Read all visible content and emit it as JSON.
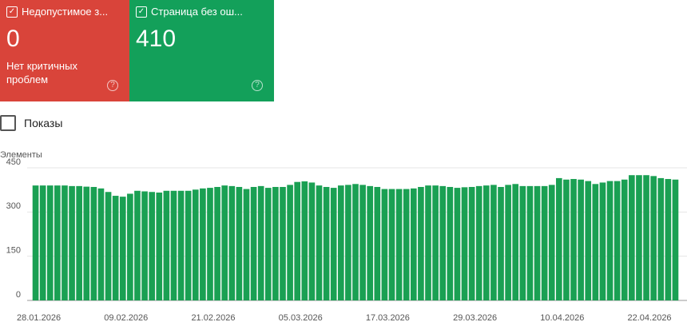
{
  "cards": [
    {
      "title": "Недопустимое з...",
      "value": 0,
      "description": "Нет критичных проблем",
      "color": "#d9443a"
    },
    {
      "title": "Страница без ош...",
      "value": 410,
      "color": "#13a05a"
    }
  ],
  "metric_toggle": "Показы",
  "chart_data": {
    "type": "bar",
    "y_label": "Элементы",
    "color": "#1aa053",
    "categories": [
      "28.01.2026",
      null,
      null,
      null,
      null,
      null,
      null,
      null,
      null,
      null,
      null,
      null,
      "09.02.2026",
      null,
      null,
      null,
      null,
      null,
      null,
      null,
      null,
      null,
      null,
      null,
      "21.02.2026",
      null,
      null,
      null,
      null,
      null,
      null,
      null,
      null,
      null,
      null,
      null,
      "05.03.2026",
      null,
      null,
      null,
      null,
      null,
      null,
      null,
      null,
      null,
      null,
      null,
      "17.03.2026",
      null,
      null,
      null,
      null,
      null,
      null,
      null,
      null,
      null,
      null,
      null,
      "29.03.2026",
      null,
      null,
      null,
      null,
      null,
      null,
      null,
      null,
      null,
      null,
      null,
      "10.04.2026",
      null,
      null,
      null,
      null,
      null,
      null,
      null,
      null,
      null,
      null,
      null,
      "22.04.2026",
      null,
      null,
      null,
      null
    ],
    "values": [
      390,
      390,
      390,
      390,
      390,
      388,
      388,
      386,
      385,
      380,
      368,
      355,
      352,
      362,
      372,
      370,
      368,
      366,
      372,
      372,
      372,
      372,
      376,
      380,
      382,
      385,
      390,
      388,
      385,
      378,
      385,
      388,
      382,
      385,
      385,
      392,
      402,
      404,
      400,
      390,
      385,
      382,
      390,
      392,
      395,
      392,
      388,
      385,
      378,
      378,
      378,
      378,
      380,
      385,
      390,
      390,
      388,
      385,
      382,
      384,
      385,
      388,
      390,
      392,
      385,
      392,
      395,
      388,
      388,
      388,
      388,
      392,
      415,
      410,
      412,
      410,
      405,
      395,
      400,
      405,
      405,
      410,
      425,
      425,
      425,
      422,
      415,
      412,
      410
    ],
    "ylim": [
      0,
      450
    ],
    "yticks": [
      0,
      150,
      300,
      450
    ],
    "grid": true
  }
}
